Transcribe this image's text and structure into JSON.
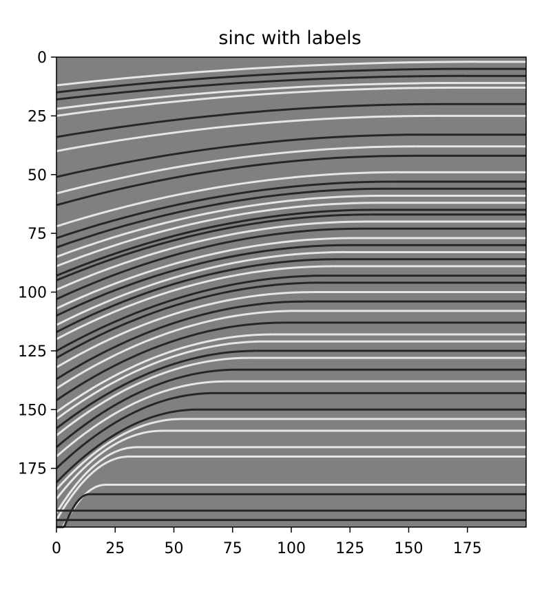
{
  "chart_data": {
    "type": "heatmap",
    "title": "sinc with labels",
    "xlabel": "",
    "ylabel": "",
    "colormap": "gray",
    "background_color": "#808080",
    "xlim": [
      0,
      200
    ],
    "ylim": [
      200,
      0
    ],
    "x_ticks": [
      "0",
      "25",
      "50",
      "75",
      "100",
      "125",
      "150",
      "175"
    ],
    "y_ticks": [
      "0",
      "25",
      "50",
      "75",
      "100",
      "125",
      "150",
      "175"
    ],
    "reflector_boundary": [
      [
        0,
        193
      ],
      [
        20,
        183
      ],
      [
        35,
        165
      ],
      [
        60,
        150
      ],
      [
        85,
        125
      ],
      [
        105,
        105
      ],
      [
        125,
        80
      ],
      [
        145,
        50
      ],
      [
        165,
        20
      ],
      [
        180,
        0
      ]
    ],
    "reflectors": [
      {
        "depth": 2,
        "tone": "light",
        "curvature": 10
      },
      {
        "depth": 5,
        "tone": "dark",
        "curvature": 10
      },
      {
        "depth": 8,
        "tone": "dark",
        "curvature": 10
      },
      {
        "depth": 11,
        "tone": "light",
        "curvature": 11
      },
      {
        "depth": 13,
        "tone": "light",
        "curvature": 12
      },
      {
        "depth": 20,
        "tone": "dark",
        "curvature": 14
      },
      {
        "depth": 25,
        "tone": "light",
        "curvature": 15
      },
      {
        "depth": 33,
        "tone": "dark",
        "curvature": 18
      },
      {
        "depth": 38,
        "tone": "light",
        "curvature": 20
      },
      {
        "depth": 42,
        "tone": "dark",
        "curvature": 21
      },
      {
        "depth": 49,
        "tone": "light",
        "curvature": 23
      },
      {
        "depth": 53,
        "tone": "dark",
        "curvature": 24
      },
      {
        "depth": 56,
        "tone": "dark",
        "curvature": 25
      },
      {
        "depth": 59,
        "tone": "light",
        "curvature": 26
      },
      {
        "depth": 62,
        "tone": "light",
        "curvature": 27
      },
      {
        "depth": 65,
        "tone": "dark",
        "curvature": 28
      },
      {
        "depth": 67,
        "tone": "dark",
        "curvature": 28
      },
      {
        "depth": 70,
        "tone": "light",
        "curvature": 29
      },
      {
        "depth": 73,
        "tone": "dark",
        "curvature": 30
      },
      {
        "depth": 77,
        "tone": "light",
        "curvature": 30
      },
      {
        "depth": 80,
        "tone": "dark",
        "curvature": 30
      },
      {
        "depth": 83,
        "tone": "light",
        "curvature": 31
      },
      {
        "depth": 86,
        "tone": "dark",
        "curvature": 31
      },
      {
        "depth": 89,
        "tone": "light",
        "curvature": 31
      },
      {
        "depth": 93,
        "tone": "dark",
        "curvature": 32
      },
      {
        "depth": 96,
        "tone": "dark",
        "curvature": 32
      },
      {
        "depth": 100,
        "tone": "light",
        "curvature": 32
      },
      {
        "depth": 104,
        "tone": "dark",
        "curvature": 33
      },
      {
        "depth": 108,
        "tone": "light",
        "curvature": 33
      },
      {
        "depth": 113,
        "tone": "dark",
        "curvature": 33
      },
      {
        "depth": 118,
        "tone": "light",
        "curvature": 33
      },
      {
        "depth": 121,
        "tone": "light",
        "curvature": 33
      },
      {
        "depth": 125,
        "tone": "dark",
        "curvature": 33
      },
      {
        "depth": 128,
        "tone": "light",
        "curvature": 33
      },
      {
        "depth": 133,
        "tone": "dark",
        "curvature": 33
      },
      {
        "depth": 138,
        "tone": "light",
        "curvature": 32
      },
      {
        "depth": 143,
        "tone": "dark",
        "curvature": 32
      },
      {
        "depth": 150,
        "tone": "dark",
        "curvature": 31
      },
      {
        "depth": 154,
        "tone": "light",
        "curvature": 30
      },
      {
        "depth": 159,
        "tone": "light",
        "curvature": 29
      },
      {
        "depth": 166,
        "tone": "light",
        "curvature": 28
      },
      {
        "depth": 170,
        "tone": "light",
        "curvature": 27
      },
      {
        "depth": 182,
        "tone": "light",
        "curvature": 24
      },
      {
        "depth": 186,
        "tone": "dark",
        "curvature": 24
      },
      {
        "depth": 193,
        "tone": "dark",
        "curvature": 22
      },
      {
        "depth": 197,
        "tone": "dark",
        "curvature": 20
      }
    ]
  }
}
